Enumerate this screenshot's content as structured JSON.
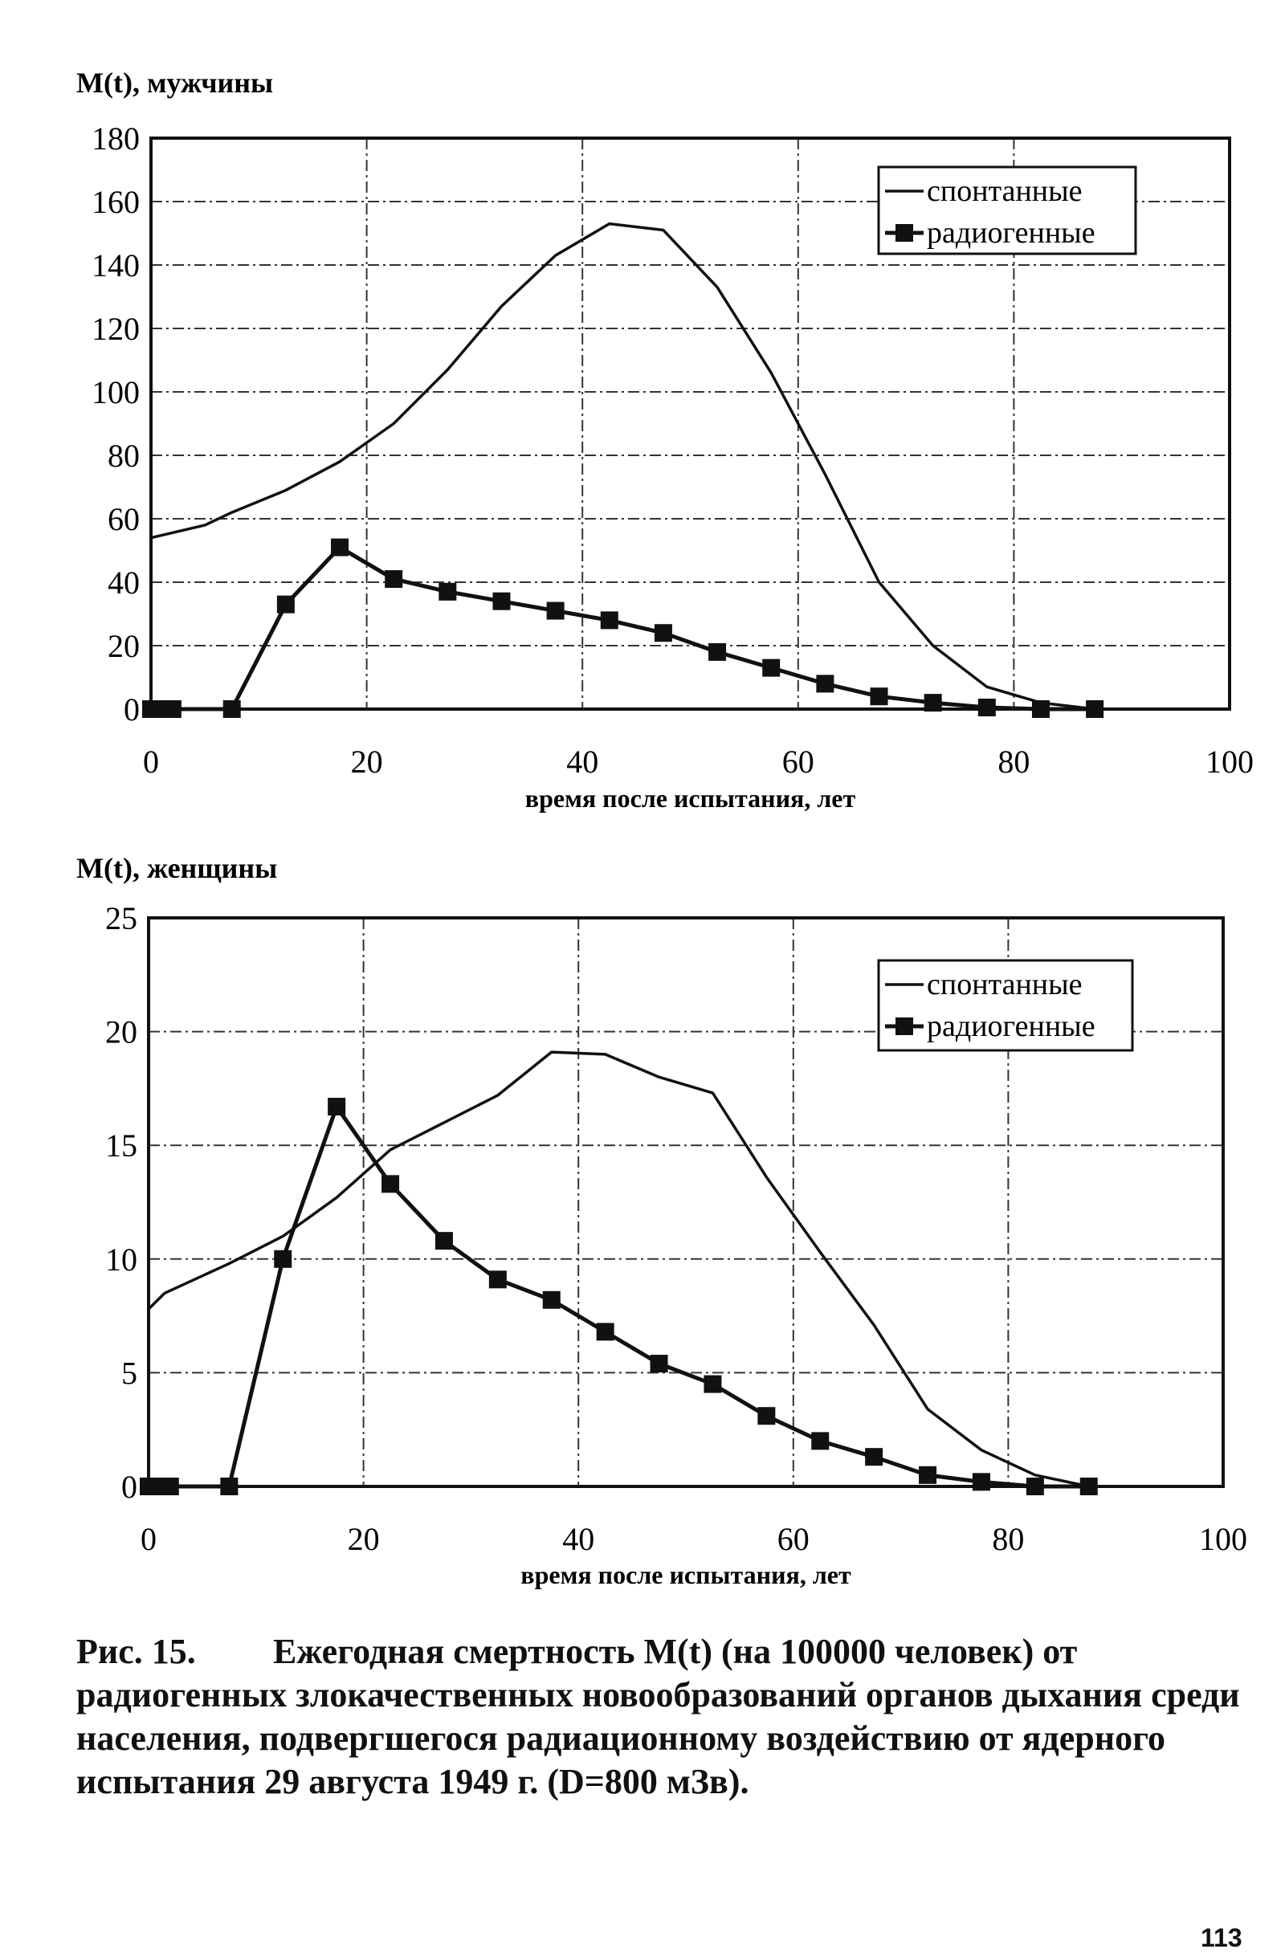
{
  "chart_data": [
    {
      "type": "line",
      "title": "M(t), мужчины",
      "xlabel": "время после испытания, лет",
      "ylabel": "M(t), мужчины",
      "xlim": [
        0,
        100
      ],
      "ylim": [
        0,
        180
      ],
      "xticks": [
        "0",
        "20",
        "40",
        "60",
        "80",
        "100"
      ],
      "yticks": [
        "0",
        "20",
        "40",
        "60",
        "80",
        "100",
        "120",
        "140",
        "160",
        "180"
      ],
      "grid": true,
      "legend_position": "top-right",
      "series": [
        {
          "name": "спонтанные",
          "marker": "none",
          "x": [
            0,
            5,
            7.5,
            12.5,
            17.5,
            22.5,
            27.5,
            32.5,
            37.5,
            42.5,
            47.5,
            52.5,
            57.5,
            62.5,
            67.5,
            72.5,
            77.5,
            82.5,
            87.5
          ],
          "y": [
            54,
            58,
            62,
            69,
            78,
            90,
            107,
            127,
            143,
            153,
            151,
            133,
            106,
            74,
            40,
            20,
            7,
            2,
            0
          ]
        },
        {
          "name": "радиогенные",
          "marker": "square",
          "x": [
            0,
            1,
            2,
            7.5,
            12.5,
            17.5,
            22.5,
            27.5,
            32.5,
            37.5,
            42.5,
            47.5,
            52.5,
            57.5,
            62.5,
            67.5,
            72.5,
            77.5,
            82.5,
            87.5
          ],
          "y": [
            0,
            0,
            0,
            0,
            33,
            51,
            41,
            37,
            34,
            31,
            28,
            24,
            18,
            13,
            8,
            4,
            2,
            0.5,
            0,
            0
          ]
        }
      ]
    },
    {
      "type": "line",
      "title": "M(t), женщины",
      "xlabel": "время после испытания, лет",
      "ylabel": "M(t), женщины",
      "xlim": [
        0,
        100
      ],
      "ylim": [
        0,
        25
      ],
      "xticks": [
        "0",
        "20",
        "40",
        "60",
        "80",
        "100"
      ],
      "yticks": [
        "0",
        "5",
        "10",
        "15",
        "20",
        "25"
      ],
      "grid": true,
      "legend_position": "top-right",
      "series": [
        {
          "name": "спонтанные",
          "marker": "none",
          "x": [
            0,
            1.5,
            7.5,
            12.5,
            17.5,
            22.5,
            27.5,
            32.5,
            37.5,
            42.5,
            47.5,
            52.5,
            57.5,
            62.5,
            67.5,
            72.5,
            77.5,
            82.5,
            87.5
          ],
          "y": [
            7.8,
            8.5,
            9.8,
            11,
            12.7,
            14.8,
            16,
            17.2,
            19.1,
            19.0,
            18,
            17.3,
            13.6,
            10.3,
            7.1,
            3.4,
            1.6,
            0.5,
            0
          ]
        },
        {
          "name": "радиогенные",
          "marker": "square",
          "x": [
            0,
            1,
            2,
            7.5,
            12.5,
            17.5,
            22.5,
            27.5,
            32.5,
            37.5,
            42.5,
            47.5,
            52.5,
            57.5,
            62.5,
            67.5,
            72.5,
            77.5,
            82.5,
            87.5
          ],
          "y": [
            0,
            0,
            0,
            0,
            10,
            16.7,
            13.3,
            10.8,
            9.1,
            8.2,
            6.8,
            5.4,
            4.5,
            3.1,
            2.0,
            1.3,
            0.5,
            0.2,
            0,
            0
          ]
        }
      ]
    }
  ],
  "caption": {
    "number": "Рис. 15.",
    "text": "Ежегодная смертность M(t) (на 100000 человек) от радиогенных злокачественных новообразований органов дыхания среди населения, подвергшегося радиационному воздействию от ядерного испытания 29 августа 1949 г. (D=800 мЗв)."
  },
  "page_number": "113"
}
